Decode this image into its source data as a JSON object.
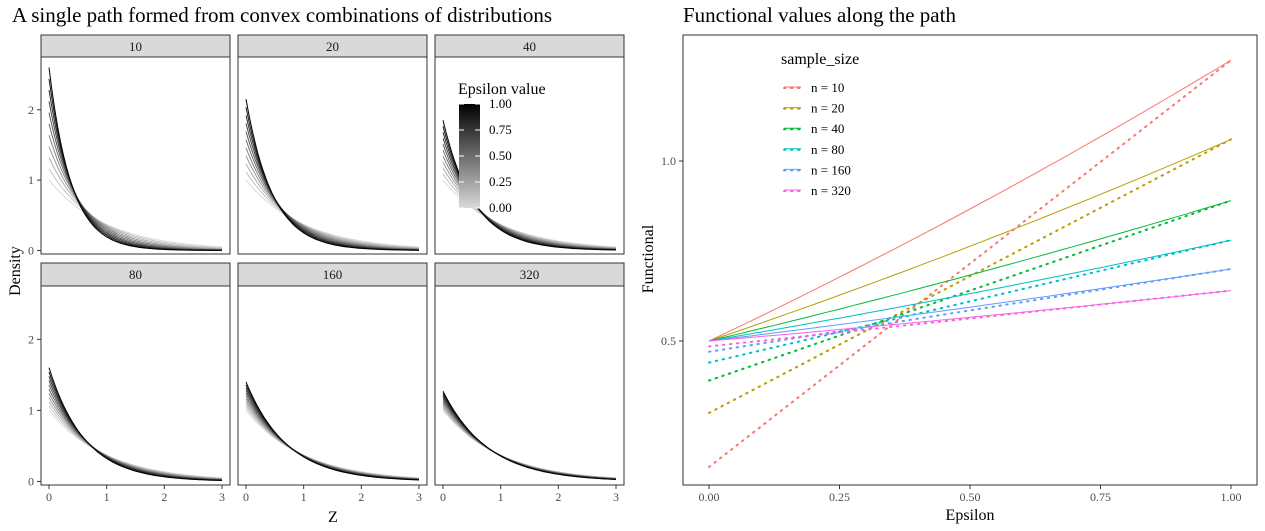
{
  "chart_data": [
    {
      "type": "line",
      "title": "A single path formed from convex combinations of distributions",
      "xlabel": "Z",
      "ylabel": "Density",
      "xlim": [
        0,
        3
      ],
      "ylim": [
        -0.05,
        2.75
      ],
      "x_ticks": [
        "0",
        "1",
        "2",
        "3"
      ],
      "y_ticks": [
        "0",
        "1",
        "2"
      ],
      "facets": [
        "10",
        "20",
        "40",
        "80",
        "160",
        "320"
      ],
      "facet_curves": [
        {
          "facet": "10",
          "start_epsilon0": 1.0,
          "start_epsilon1": 2.6,
          "decay_epsilon0": 1.0,
          "decay_epsilon1": 2.6
        },
        {
          "facet": "20",
          "start_epsilon0": 1.0,
          "start_epsilon1": 2.15,
          "decay_epsilon0": 1.0,
          "decay_epsilon1": 2.15
        },
        {
          "facet": "40",
          "start_epsilon0": 1.0,
          "start_epsilon1": 1.85,
          "decay_epsilon0": 1.0,
          "decay_epsilon1": 1.85
        },
        {
          "facet": "80",
          "start_epsilon0": 1.0,
          "start_epsilon1": 1.6,
          "decay_epsilon0": 1.0,
          "decay_epsilon1": 1.6
        },
        {
          "facet": "160",
          "start_epsilon0": 1.0,
          "start_epsilon1": 1.4,
          "decay_epsilon0": 1.0,
          "decay_epsilon1": 1.4
        },
        {
          "facet": "320",
          "start_epsilon0": 1.0,
          "start_epsilon1": 1.27,
          "decay_epsilon0": 1.0,
          "decay_epsilon1": 1.27
        }
      ],
      "epsilon_values": [
        0,
        0.1,
        0.2,
        0.3,
        0.4,
        0.5,
        0.6,
        0.7,
        0.8,
        0.9,
        1.0
      ],
      "legend": {
        "title": "Epsilon value",
        "ticks": [
          "1.00",
          "0.75",
          "0.50",
          "0.25",
          "0.00"
        ],
        "color_low": "#d9d9d9",
        "color_high": "#000000",
        "placement": "inside facet 40"
      },
      "grid": false
    },
    {
      "type": "line",
      "title": "Functional values along the path",
      "xlabel": "Epsilon",
      "ylabel": "Functional",
      "xlim": [
        0,
        1
      ],
      "ylim": [
        0.1,
        1.35
      ],
      "x_ticks": [
        "0.00",
        "0.25",
        "0.50",
        "0.75",
        "1.00"
      ],
      "y_ticks": [
        "0.5",
        "1.0"
      ],
      "legend": {
        "title": "sample_size",
        "placement": "top-left inside"
      },
      "grid": false,
      "series": [
        {
          "name": "n = 10",
          "color": "#F8766D",
          "solid": {
            "start": 0.5,
            "end": 1.28
          },
          "dotted": {
            "start": 0.15,
            "end": 1.28
          }
        },
        {
          "name": "n = 20",
          "color": "#B79F00",
          "solid": {
            "start": 0.5,
            "end": 1.06
          },
          "dotted": {
            "start": 0.3,
            "end": 1.06
          }
        },
        {
          "name": "n = 40",
          "color": "#00BA38",
          "solid": {
            "start": 0.5,
            "end": 0.89
          },
          "dotted": {
            "start": 0.39,
            "end": 0.89
          }
        },
        {
          "name": "n = 80",
          "color": "#00BFC4",
          "solid": {
            "start": 0.5,
            "end": 0.78
          },
          "dotted": {
            "start": 0.44,
            "end": 0.78
          }
        },
        {
          "name": "n = 160",
          "color": "#619CFF",
          "solid": {
            "start": 0.5,
            "end": 0.7
          },
          "dotted": {
            "start": 0.47,
            "end": 0.7
          }
        },
        {
          "name": "n = 320",
          "color": "#F564E3",
          "solid": {
            "start": 0.5,
            "end": 0.64
          },
          "dotted": {
            "start": 0.485,
            "end": 0.64
          }
        }
      ]
    }
  ]
}
